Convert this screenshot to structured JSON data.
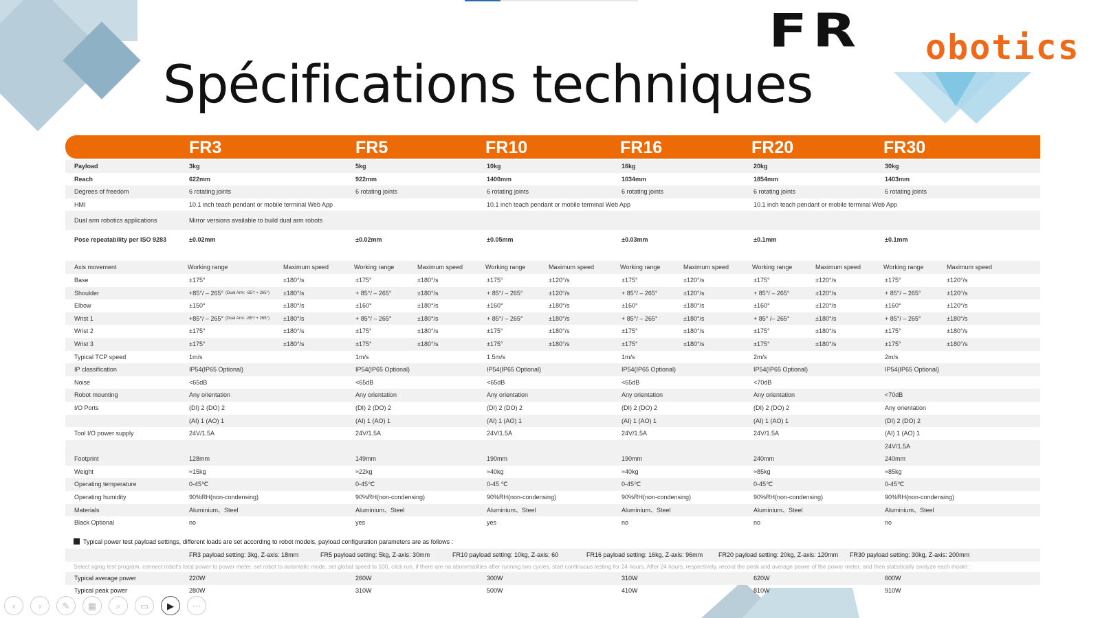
{
  "slide": {
    "title": "Spécifications techniques",
    "logo": {
      "part1": "FR",
      "part2": "obotics"
    }
  },
  "models": [
    "FR3",
    "FR5",
    "FR10",
    "FR16",
    "FR20",
    "FR30"
  ],
  "top_rows": [
    {
      "label": "Payload",
      "cells": [
        "3kg",
        "5kg",
        "10kg",
        "16kg",
        "20kg",
        "30kg"
      ]
    },
    {
      "label": "Reach",
      "cells": [
        "622mm",
        "922mm",
        "1400mm",
        "1034mm",
        "1854mm",
        "1403mm"
      ]
    },
    {
      "label": "Degrees of freedom",
      "cells": [
        "6 rotating joints",
        "6 rotating joints",
        "6 rotating joints",
        "6 rotating joints",
        "6 rotating joints",
        "6 rotating joints"
      ]
    },
    {
      "label": "HMI",
      "cells": [
        "10.1 inch teach pendant or mobile terminal Web App",
        "",
        "10.1 inch teach pendant or mobile terminal Web App",
        "",
        "10.1 inch teach pendant or mobile terminal Web App",
        ""
      ]
    },
    {
      "label": "Dual arm robotics applications",
      "cells": [
        "Mirror versions available to build dual arm robots",
        "",
        "",
        "",
        "",
        ""
      ]
    },
    {
      "label": "Pose repeatability per ISO 9283",
      "cells": [
        "±0.02mm",
        "±0.02mm",
        "±0.05mm",
        "±0.03mm",
        "±0.1mm",
        "±0.1mm"
      ]
    }
  ],
  "axis_header": {
    "label": "Axis movement",
    "working": "Working range",
    "speed": "Maximum speed"
  },
  "axis_rows": [
    {
      "label": "Base",
      "cells": [
        [
          "±175°",
          "±180°/s"
        ],
        [
          "±175°",
          "±180°/s"
        ],
        [
          "±175°",
          "±120°/s"
        ],
        [
          "±175°",
          "±120°/s"
        ],
        [
          "±175°",
          "±120°/s"
        ],
        [
          "±175°",
          "±120°/s"
        ]
      ]
    },
    {
      "label": "Shoulder",
      "cells": [
        [
          "+85°/ – 265°",
          "±180°/s"
        ],
        [
          "+ 85°/ – 265°",
          "±180°/s"
        ],
        [
          "+ 85°/ – 265°",
          "±120°/s"
        ],
        [
          "+ 85°/ – 265°",
          "±120°/s"
        ],
        [
          "+ 85°/ – 265°",
          "±120°/s"
        ],
        [
          "+ 85°/ – 265°",
          "±120°/s"
        ]
      ],
      "fr3_note": "(Dual Arm: -85°/ + 265°)"
    },
    {
      "label": "Elbow",
      "cells": [
        [
          "±150°",
          "±180°/s"
        ],
        [
          "±160°",
          "±180°/s"
        ],
        [
          "±160°",
          "±180°/s"
        ],
        [
          "±160°",
          "±180°/s"
        ],
        [
          "±160°",
          "±120°/s"
        ],
        [
          "±160°",
          "±120°/s"
        ]
      ]
    },
    {
      "label": "Wrist 1",
      "cells": [
        [
          "+85°/ – 265°",
          "±180°/s"
        ],
        [
          "+ 85°/ – 265°",
          "±180°/s"
        ],
        [
          "+ 85°/ – 265°",
          "±180°/s"
        ],
        [
          "+ 85°/ – 265°",
          "±180°/s"
        ],
        [
          "+ 85° /– 265°",
          "±180°/s"
        ],
        [
          "+ 85°/ – 265°",
          "±180°/s"
        ]
      ],
      "fr3_note": "(Dual Arm: -85°/ + 265°)"
    },
    {
      "label": "Wrist 2",
      "cells": [
        [
          "±175°",
          "±180°/s"
        ],
        [
          "±175°",
          "±180°/s"
        ],
        [
          "±175°",
          "±180°/s"
        ],
        [
          "±175°",
          "±180°/s"
        ],
        [
          "±175°",
          "±180°/s"
        ],
        [
          "±175°",
          "±180°/s"
        ]
      ]
    },
    {
      "label": "Wrist 3",
      "cells": [
        [
          "±175°",
          "±180°/s"
        ],
        [
          "±175°",
          "±180°/s"
        ],
        [
          "±175°",
          "±180°/s"
        ],
        [
          "±175°",
          "±180°/s"
        ],
        [
          "±175°",
          "±180°/s"
        ],
        [
          "±175°",
          "±180°/s"
        ]
      ]
    }
  ],
  "spec_rows": [
    {
      "label": "Typical TCP speed",
      "cells": [
        "1m/s",
        "1m/s",
        "1.5m/s",
        "1m/s",
        "2m/s",
        "2m/s"
      ]
    },
    {
      "label": "IP classification",
      "cells": [
        "IP54(IP65 Optional)",
        "IP54(IP65 Optional)",
        "IP54(IP65 Optional)",
        "IP54(IP65 Optional)",
        "IP54(IP65 Optional)",
        "IP54(IP65 Optional)"
      ]
    },
    {
      "label": "Noise",
      "cells": [
        "<65dB",
        "<65dB",
        "<65dB",
        "<65dB",
        "<70dB",
        ""
      ]
    },
    {
      "label": "Robot mounting",
      "cells": [
        "Any orientation",
        "Any orientation",
        "Any orientation",
        "Any orientation",
        "Any orientation",
        "<70dB"
      ]
    },
    {
      "label": "I/O Ports",
      "cells": [
        "(DI) 2      (DO) 2",
        "(DI) 2      (DO) 2",
        "(DI) 2      (DO) 2",
        "(DI) 2      (DO) 2",
        "(DI) 2      (DO) 2",
        "Any orientation"
      ]
    },
    {
      "label": "",
      "cells": [
        "(AI) 1      (AO) 1",
        "(AI) 1      (AO) 1",
        "(AI) 1      (AO) 1",
        "(AI) 1      (AO) 1",
        "(AI) 1      (AO) 1",
        "(DI) 2      (DO) 2"
      ]
    },
    {
      "label": "Tool I/O power supply",
      "cells": [
        "24V/1.5A",
        "24V/1.5A",
        "24V/1.5A",
        "24V/1.5A",
        "24V/1.5A",
        "(AI) 1      (AO) 1"
      ]
    },
    {
      "label": "",
      "cells": [
        "",
        "",
        "",
        "",
        "",
        "24V/1.5A"
      ]
    }
  ],
  "phys_rows": [
    {
      "label": "Footprint",
      "cells": [
        "128mm",
        "149mm",
        "190mm",
        "190mm",
        "240mm",
        "240mm"
      ]
    },
    {
      "label": "Weight",
      "cells": [
        "≈15kg",
        "≈22kg",
        "≈40kg",
        "≈40kg",
        "≈85kg",
        "≈85kg"
      ]
    },
    {
      "label": "Operating temperature",
      "cells": [
        "0-45℃",
        "0-45℃",
        "0-45 ℃",
        "0-45℃",
        "0-45℃",
        "0-45℃"
      ]
    },
    {
      "label": "Operating humidity",
      "cells": [
        "90%RH(non-condensing)",
        "90%RH(non-condensing)",
        "90%RH(non-condensing)",
        "90%RH(non-condensing)",
        "90%RH(non-condensing)",
        "90%RH(non-condensing)"
      ]
    },
    {
      "label": "Materials",
      "cells": [
        "Aluminium、Steel",
        "Aluminium、Steel",
        "Aluminium、Steel",
        "Aluminium、Steel",
        "Aluminium、Steel",
        "Aluminium、Steel"
      ]
    },
    {
      "label": "Black Optional",
      "cells": [
        "no",
        "yes",
        "yes",
        "no",
        "no",
        "no"
      ]
    }
  ],
  "power_note": "Typical power test payload settings, different loads are set according to robot models, payload configuration parameters are as follows :",
  "payload_settings": [
    "FR3 payload setting: 3kg, Z-axis: 18mm",
    "FR5 payload setting: 5kg, Z-axis: 30mm",
    "FR10 payload setting: 10kg, Z-axis: 60",
    "FR16 payload setting: 16kg, Z-axis: 96mm",
    "FR20 payload setting: 20kg, Z-axis: 120mm",
    "FR30 payload setting: 30kg, Z-axis: 200mm"
  ],
  "aging_text": "Select aging test program, connect robot's total power to power meter, set robot to automatic mode, set global speed to 100, click run, if there are no abnormalities after running two cycles, start continuous testing for 24 hours. After 24 hours, respectively, record the peak and average power of the power meter, and then statistically analyze each model :",
  "power_rows": [
    {
      "label": "Typical average power",
      "cells": [
        "220W",
        "260W",
        "300W",
        "310W",
        "620W",
        "600W"
      ]
    },
    {
      "label": "Typical peak power",
      "cells": [
        "280W",
        "310W",
        "500W",
        "410W",
        "810W",
        "910W"
      ]
    }
  ],
  "toolbar": [
    "prev-icon",
    "next-icon",
    "pen-icon",
    "grid-icon",
    "zoom-icon",
    "subtitle-icon",
    "camera-icon",
    "more-icon"
  ],
  "colors": {
    "accent": "#ec6b06",
    "stripe": "#f1f1f1",
    "deco": "#b7cdd9"
  }
}
